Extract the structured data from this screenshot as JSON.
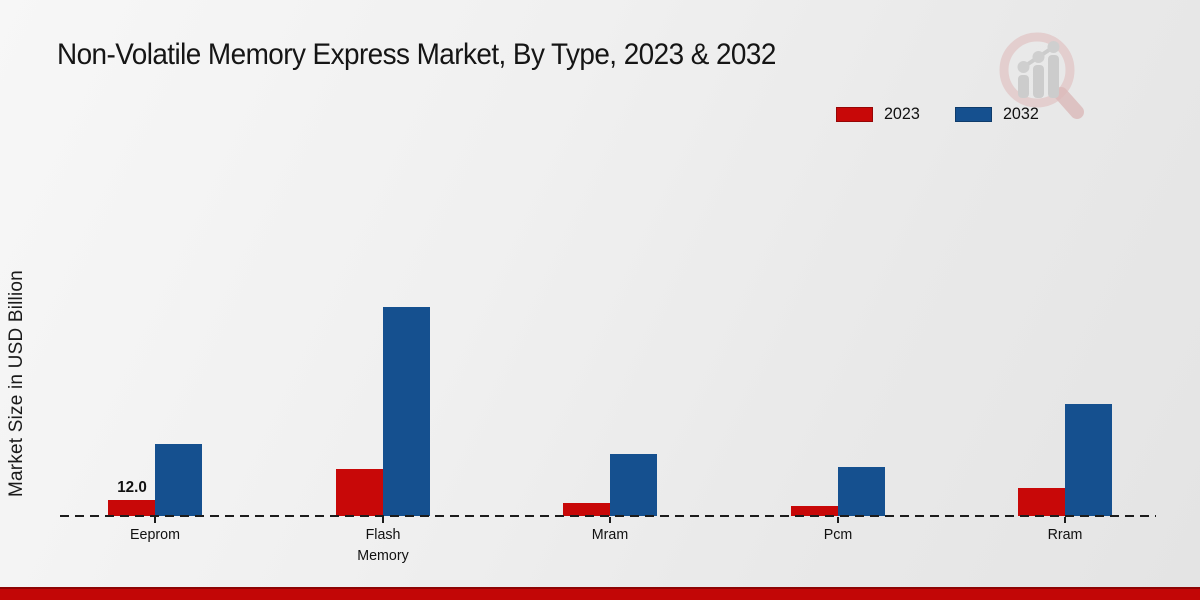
{
  "header": {
    "title": "Non-Volatile Memory Express Market, By Type, 2023 & 2032"
  },
  "colors": {
    "series_2023": "#c80808",
    "series_2032": "#15508f",
    "footer_band": "#c20606",
    "baseline": "#1c1c1c"
  },
  "chart_data": {
    "type": "bar",
    "title": "Non-Volatile Memory Express Market, By Type, 2023 & 2032",
    "xlabel": "",
    "ylabel": "Market Size in USD Billion",
    "categories": [
      "Eeprom",
      "Flash Memory",
      "Mram",
      "Pcm",
      "Rram"
    ],
    "series": [
      {
        "name": "2023",
        "color": "#c80808",
        "values": [
          12.0,
          35,
          9.5,
          7.5,
          21
        ]
      },
      {
        "name": "2032",
        "color": "#15508f",
        "values": [
          53,
          155,
          46,
          36,
          83
        ]
      }
    ],
    "data_labels": [
      {
        "series_index": 0,
        "category_index": 0,
        "text": "12.0"
      }
    ],
    "legend_position": "top-right",
    "grid": false,
    "baseline_style": "dashed",
    "ylim": [
      0,
      160
    ]
  },
  "logo": {
    "name": "magnifier-growth-chart-watermark"
  }
}
